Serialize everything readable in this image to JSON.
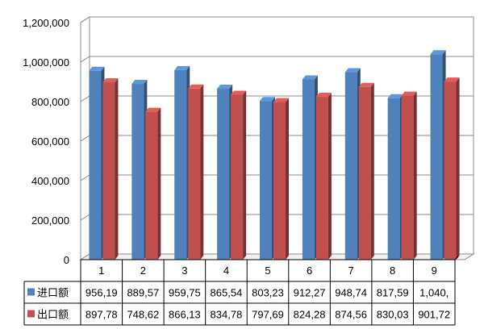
{
  "chart_data": {
    "type": "bar",
    "style": "3d-clustered-column",
    "categories": [
      "1",
      "2",
      "3",
      "4",
      "5",
      "6",
      "7",
      "8",
      "9"
    ],
    "series": [
      {
        "name": "进口额",
        "color": "#4F81BD",
        "values": [
          956190,
          889570,
          959750,
          865540,
          803230,
          912270,
          948740,
          817590,
          1040000
        ],
        "table_labels": [
          "956,19",
          "889,57",
          "959,75",
          "865,54",
          "803,23",
          "912,27",
          "948,74",
          "817,59",
          "1,040,"
        ]
      },
      {
        "name": "出口额",
        "color": "#C0504D",
        "values": [
          897780,
          748620,
          866130,
          834780,
          797690,
          824280,
          874560,
          830030,
          901720
        ],
        "table_labels": [
          "897,78",
          "748,62",
          "866,13",
          "834,78",
          "797,69",
          "824,28",
          "874,56",
          "830,03",
          "901,72"
        ]
      }
    ],
    "y_ticks": [
      "0",
      "200,000",
      "400,000",
      "600,000",
      "800,000",
      "1,000,000",
      "1,200,000"
    ],
    "ylim": [
      0,
      1200000
    ],
    "grid": true,
    "legend": "data-table-left"
  }
}
